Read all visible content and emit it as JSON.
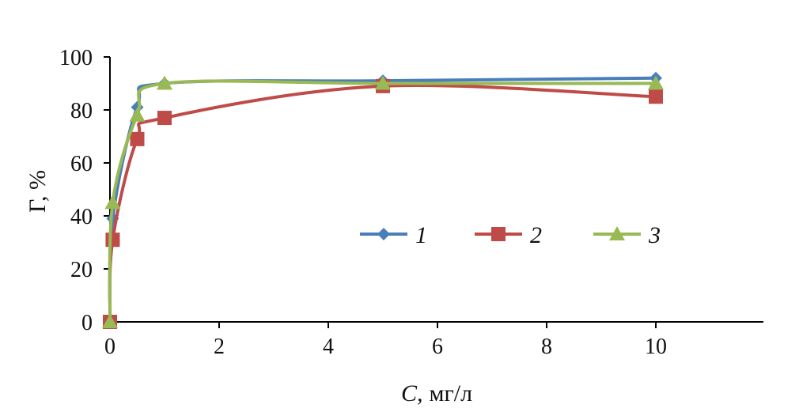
{
  "chart_data": {
    "type": "line",
    "title": "",
    "xlabel_italic": "C,",
    "xlabel_unit": "мг/л",
    "ylabel": "Г, %",
    "xlim": [
      0,
      12
    ],
    "ylim": [
      0,
      100
    ],
    "xticks": [
      "0",
      "2",
      "4",
      "6",
      "8",
      "10"
    ],
    "xtick_values": [
      0,
      2,
      4,
      6,
      8,
      10
    ],
    "yticks": [
      "0",
      "20",
      "40",
      "60",
      "80",
      "100"
    ],
    "ytick_values": [
      0,
      20,
      40,
      60,
      80,
      100
    ],
    "grid": false,
    "legend_placement": "center-right",
    "series": [
      {
        "name": "1",
        "color": "#4a7ebb",
        "marker": "diamond",
        "x": [
          0,
          0.05,
          0.5,
          1,
          5,
          10
        ],
        "y": [
          0,
          39,
          81,
          90,
          91,
          92
        ]
      },
      {
        "name": "2",
        "color": "#be4b48",
        "marker": "square",
        "x": [
          0,
          0.05,
          0.5,
          1,
          5,
          10
        ],
        "y": [
          0,
          31,
          69,
          77,
          89,
          85
        ]
      },
      {
        "name": "3",
        "color": "#98b954",
        "marker": "triangle",
        "x": [
          0,
          0.05,
          0.5,
          1,
          5,
          10
        ],
        "y": [
          0,
          45,
          78,
          90,
          90,
          90
        ]
      }
    ]
  }
}
